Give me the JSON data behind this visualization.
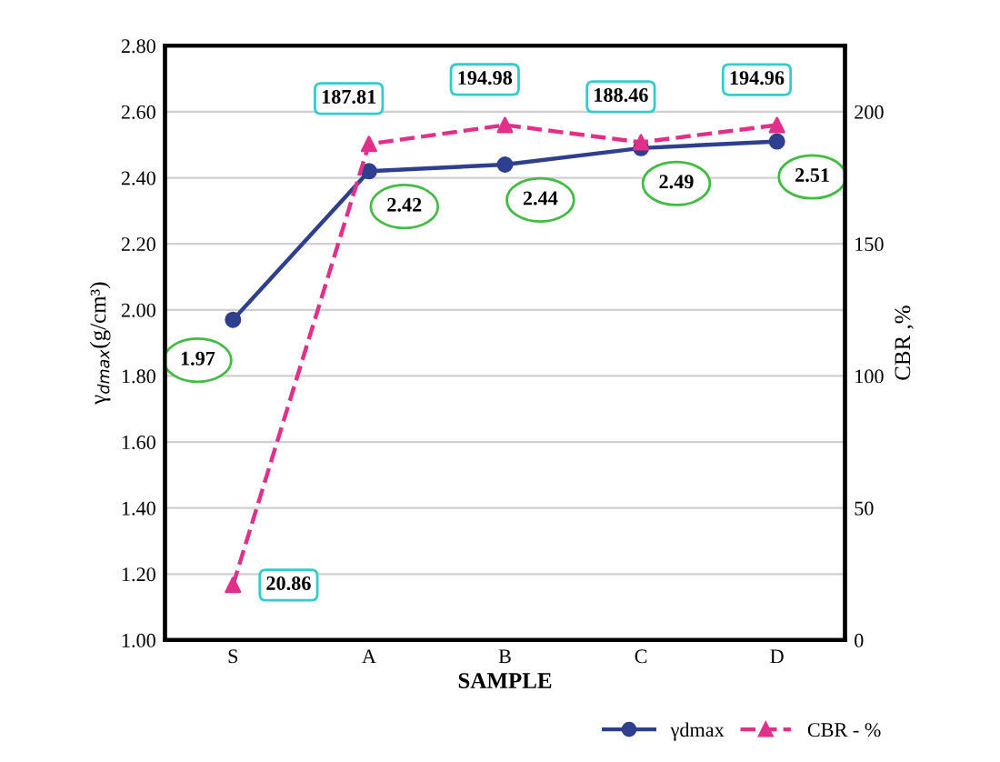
{
  "chart_data": {
    "type": "line",
    "xlabel": "SAMPLE",
    "ylabel": "γ$_{dmax}$(g/cm³)",
    "y2label": "CBR ,%",
    "categories": [
      "S",
      "A",
      "B",
      "C",
      "D"
    ],
    "series": [
      {
        "name": "γdmax",
        "color": "#2f3f8f",
        "values": [
          1.97,
          2.42,
          2.44,
          2.49,
          2.51
        ],
        "marker": "circle",
        "line_style": "solid"
      },
      {
        "name": "CBR - %",
        "color": "#e0308a",
        "values": [
          20.86,
          187.81,
          194.98,
          188.46,
          194.96
        ],
        "marker": "triangle",
        "line_style": "dashed",
        "axis": "y2"
      }
    ],
    "ylim": [
      1.0,
      2.8
    ],
    "yticks": [
      {
        "value": 1.0,
        "label": "1.00"
      },
      {
        "value": 1.2,
        "label": "1.20"
      },
      {
        "value": 1.4,
        "label": "1.40"
      },
      {
        "value": 1.6,
        "label": "1.60"
      },
      {
        "value": 1.8,
        "label": "1.80"
      },
      {
        "value": 2.0,
        "label": "2.00"
      },
      {
        "value": 2.2,
        "label": "2.20"
      },
      {
        "value": 2.4,
        "label": "2.40"
      },
      {
        "value": 2.6,
        "label": "2.60"
      },
      {
        "value": 2.8,
        "label": "2.80"
      }
    ],
    "y2lim": [
      0,
      225
    ],
    "y2ticks": [
      0,
      50,
      100,
      150,
      200
    ],
    "grid": "y",
    "legend": "bottom right",
    "data_labels": true
  }
}
